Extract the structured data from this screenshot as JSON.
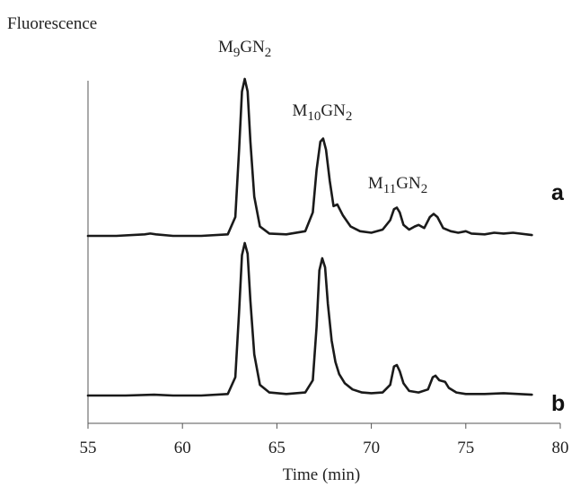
{
  "chart_data": {
    "type": "line",
    "ylabel": "Fluorescence",
    "xlabel": "Time (min)",
    "xlim": [
      55,
      80
    ],
    "xticks": [
      "55",
      "60",
      "65",
      "70",
      "75",
      "80"
    ],
    "grid": false,
    "annotations": [
      {
        "base": "M",
        "sub1": "9",
        "mid": "GN",
        "sub2": "2",
        "x": 63.3
      },
      {
        "base": "M",
        "sub1": "10",
        "mid": "GN",
        "sub2": "2",
        "x": 67.4
      },
      {
        "base": "M",
        "sub1": "11",
        "mid": "GN",
        "sub2": "2",
        "x": 71.4
      }
    ],
    "series": [
      {
        "name": "a",
        "x": [
          55.0,
          56.5,
          58.0,
          58.3,
          58.6,
          59.5,
          61.0,
          62.4,
          62.8,
          63.0,
          63.15,
          63.3,
          63.45,
          63.6,
          63.8,
          64.1,
          64.6,
          65.5,
          66.5,
          66.9,
          67.1,
          67.3,
          67.45,
          67.6,
          67.8,
          68.0,
          68.2,
          68.5,
          68.9,
          69.4,
          70.0,
          70.6,
          71.0,
          71.2,
          71.35,
          71.5,
          71.7,
          72.0,
          72.3,
          72.5,
          72.8,
          73.1,
          73.3,
          73.5,
          73.8,
          74.2,
          74.6,
          75.0,
          75.3,
          76.0,
          76.5,
          77.0,
          77.5,
          78.5
        ],
        "y": [
          0.0,
          0.0,
          0.01,
          0.015,
          0.01,
          0.0,
          0.0,
          0.01,
          0.12,
          0.55,
          0.92,
          1.0,
          0.92,
          0.6,
          0.25,
          0.06,
          0.015,
          0.01,
          0.03,
          0.15,
          0.42,
          0.6,
          0.62,
          0.55,
          0.35,
          0.19,
          0.2,
          0.13,
          0.06,
          0.03,
          0.02,
          0.04,
          0.1,
          0.17,
          0.18,
          0.15,
          0.07,
          0.04,
          0.06,
          0.07,
          0.05,
          0.12,
          0.14,
          0.12,
          0.05,
          0.03,
          0.02,
          0.03,
          0.015,
          0.01,
          0.02,
          0.015,
          0.02,
          0.005
        ]
      },
      {
        "name": "b",
        "x": [
          55.0,
          57.0,
          58.5,
          59.5,
          61.0,
          62.4,
          62.8,
          63.0,
          63.15,
          63.3,
          63.45,
          63.6,
          63.8,
          64.1,
          64.6,
          65.5,
          66.5,
          66.9,
          67.1,
          67.25,
          67.4,
          67.55,
          67.7,
          67.9,
          68.1,
          68.3,
          68.6,
          69.0,
          69.5,
          70.0,
          70.6,
          71.0,
          71.2,
          71.35,
          71.5,
          71.7,
          72.0,
          72.5,
          73.0,
          73.25,
          73.4,
          73.6,
          73.9,
          74.1,
          74.5,
          75.0,
          76.0,
          77.0,
          78.5
        ],
        "y": [
          0.0,
          0.0,
          0.005,
          0.0,
          0.0,
          0.01,
          0.12,
          0.55,
          0.92,
          1.0,
          0.93,
          0.62,
          0.27,
          0.07,
          0.02,
          0.01,
          0.02,
          0.1,
          0.45,
          0.82,
          0.9,
          0.84,
          0.6,
          0.36,
          0.22,
          0.14,
          0.08,
          0.04,
          0.02,
          0.015,
          0.02,
          0.07,
          0.19,
          0.2,
          0.16,
          0.08,
          0.03,
          0.02,
          0.04,
          0.12,
          0.13,
          0.1,
          0.09,
          0.05,
          0.02,
          0.01,
          0.01,
          0.015,
          0.005
        ]
      }
    ]
  }
}
